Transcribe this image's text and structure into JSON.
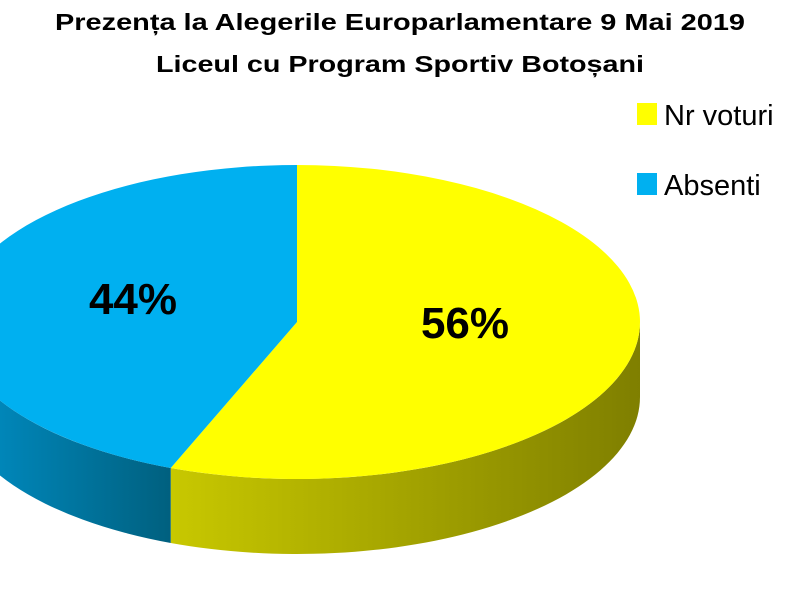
{
  "chart_data": {
    "type": "pie",
    "style": "3d",
    "title": "Prezența la Alegerile Europarlamentare 9 Mai 2019",
    "subtitle": "Liceul cu  Program Sportiv Botoșani",
    "slices": [
      {
        "name": "Nr voturi",
        "value": 56,
        "label": "56%",
        "color": "#FFFF00",
        "side_dark": "#7F7F00",
        "side_light": "#C8C800"
      },
      {
        "name": "Absenti",
        "value": 44,
        "label": "44%",
        "color": "#00B0F0",
        "side_dark": "#00607F",
        "side_light": "#0090C8"
      }
    ],
    "legend_position": "right"
  }
}
